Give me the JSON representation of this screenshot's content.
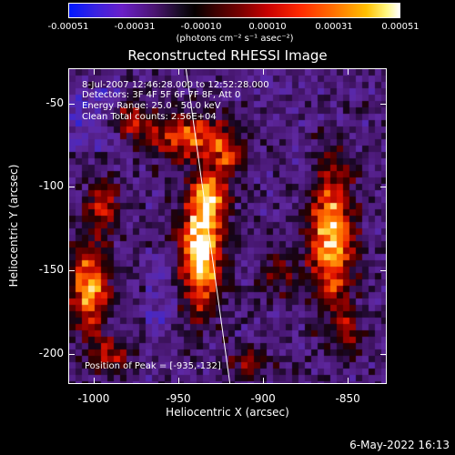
{
  "colorbar": {
    "ticks": [
      "-0.00051",
      "-0.00031",
      "-0.00010",
      "0.00010",
      "0.00031",
      "0.00051"
    ],
    "unit_label": "(photons cm⁻² s⁻¹ asec⁻²)",
    "colors": [
      "#0018ff",
      "#6a1fc8",
      "#000000",
      "#c80000",
      "#ff7000",
      "#ffffff"
    ]
  },
  "chart_data": {
    "type": "heatmap",
    "title": "Reconstructed RHESSI Image",
    "xlabel": "Heliocentric X (arcsec)",
    "ylabel": "Heliocentric Y (arcsec)",
    "xlim": [
      -1015,
      -827
    ],
    "ylim": [
      -218,
      -29
    ],
    "x_ticks": [
      -1000,
      -950,
      -900,
      -850
    ],
    "y_ticks": [
      -50,
      -100,
      -150,
      -200
    ],
    "value_range": [
      -0.00051,
      0.00051
    ],
    "line": {
      "x": [
        -946,
        -920
      ],
      "y": [
        -29,
        -218
      ],
      "color": "#ffffff"
    },
    "annotations": {
      "time": "8-Jul-2007 12:46:28.000 to 12:52:28.000",
      "detectors": "Detectors: 3F 4F 5F 6F 7F 8F, Att 0",
      "energy": "Energy Range: 25.0 - 50.0 keV",
      "method": "Clean      Total counts: 2.56E+04",
      "peak": "Position of Peak = [-935,-132]"
    },
    "sources": [
      {
        "x": -937,
        "y": -138,
        "amp": 1.0,
        "sx": 9,
        "sy": 24
      },
      {
        "x": -932,
        "y": -105,
        "amp": 0.6,
        "sx": 7,
        "sy": 9
      },
      {
        "x": -944,
        "y": -70,
        "amp": 0.65,
        "sx": 16,
        "sy": 10
      },
      {
        "x": -1003,
        "y": -160,
        "amp": 0.8,
        "sx": 8,
        "sy": 18
      },
      {
        "x": -995,
        "y": -110,
        "amp": 0.5,
        "sx": 7,
        "sy": 10
      },
      {
        "x": -980,
        "y": -60,
        "amp": 0.45,
        "sx": 9,
        "sy": 7
      },
      {
        "x": -920,
        "y": -80,
        "amp": 0.45,
        "sx": 7,
        "sy": 10
      },
      {
        "x": -860,
        "y": -130,
        "amp": 0.85,
        "sx": 9,
        "sy": 30
      },
      {
        "x": -850,
        "y": -188,
        "amp": 0.35,
        "sx": 6,
        "sy": 10
      },
      {
        "x": -890,
        "y": -150,
        "amp": 0.35,
        "sx": 8,
        "sy": 10
      },
      {
        "x": -990,
        "y": -200,
        "amp": 0.4,
        "sx": 10,
        "sy": 8
      },
      {
        "x": -910,
        "y": -205,
        "amp": 0.35,
        "sx": 10,
        "sy": 6
      }
    ]
  },
  "timestamp": "6-May-2022 16:13"
}
